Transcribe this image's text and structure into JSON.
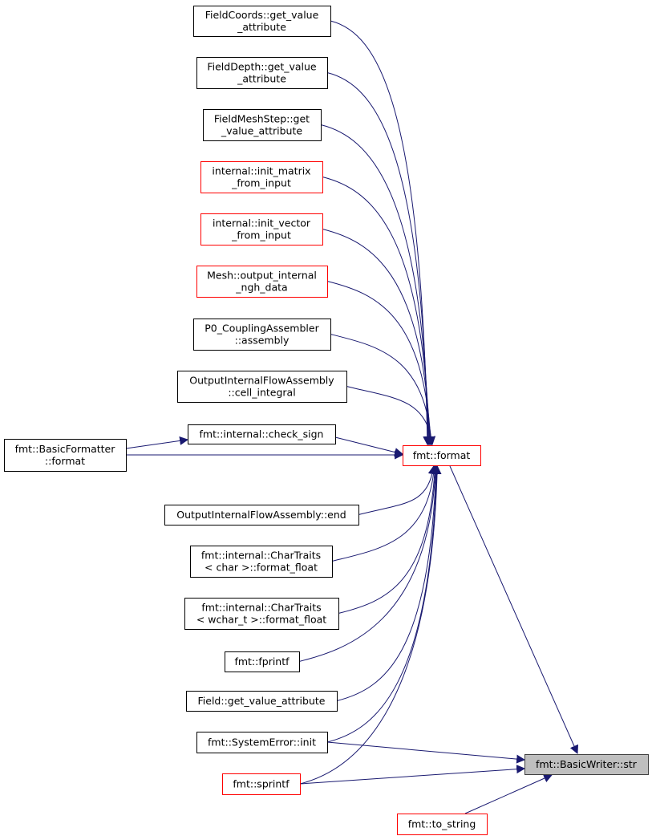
{
  "colors": {
    "edge": "#191970",
    "border_default": "#000000",
    "border_truncated": "#ff0000",
    "focus_fill": "#bfbfbf",
    "focus_border": "#404040"
  },
  "nodes": [
    {
      "id": "n1",
      "lines": [
        "FieldCoords::get_value",
        "_attribute"
      ],
      "style": "normal"
    },
    {
      "id": "n2",
      "lines": [
        "FieldDepth::get_value",
        "_attribute"
      ],
      "style": "normal"
    },
    {
      "id": "n3",
      "lines": [
        "FieldMeshStep::get",
        "_value_attribute"
      ],
      "style": "normal"
    },
    {
      "id": "n4",
      "lines": [
        "internal::init_matrix",
        "_from_input"
      ],
      "style": "truncated"
    },
    {
      "id": "n5",
      "lines": [
        "internal::init_vector",
        "_from_input"
      ],
      "style": "truncated"
    },
    {
      "id": "n6",
      "lines": [
        "Mesh::output_internal",
        "_ngh_data"
      ],
      "style": "truncated"
    },
    {
      "id": "n7",
      "lines": [
        "P0_CouplingAssembler",
        "::assembly"
      ],
      "style": "normal"
    },
    {
      "id": "n8",
      "lines": [
        "OutputInternalFlowAssembly",
        "::cell_integral"
      ],
      "style": "normal"
    },
    {
      "id": "n9",
      "lines": [
        "fmt::internal::check_sign"
      ],
      "style": "normal"
    },
    {
      "id": "n10",
      "lines": [
        "fmt::BasicFormatter",
        "::format"
      ],
      "style": "normal"
    },
    {
      "id": "n11",
      "lines": [
        "fmt::format"
      ],
      "style": "truncated"
    },
    {
      "id": "n12",
      "lines": [
        "OutputInternalFlowAssembly::end"
      ],
      "style": "normal"
    },
    {
      "id": "n13",
      "lines": [
        "fmt::internal::CharTraits",
        "< char >::format_float"
      ],
      "style": "normal"
    },
    {
      "id": "n14",
      "lines": [
        "fmt::internal::CharTraits",
        "< wchar_t >::format_float"
      ],
      "style": "normal"
    },
    {
      "id": "n15",
      "lines": [
        "fmt::fprintf"
      ],
      "style": "normal"
    },
    {
      "id": "n16",
      "lines": [
        "Field::get_value_attribute"
      ],
      "style": "normal"
    },
    {
      "id": "n17",
      "lines": [
        "fmt::SystemError::init"
      ],
      "style": "normal"
    },
    {
      "id": "n18",
      "lines": [
        "fmt::sprintf"
      ],
      "style": "truncated"
    },
    {
      "id": "n19",
      "lines": [
        "fmt::BasicWriter::str"
      ],
      "style": "focus"
    },
    {
      "id": "n20",
      "lines": [
        "fmt::to_string"
      ],
      "style": "truncated"
    }
  ],
  "edges": [
    {
      "from": "n1",
      "to": "n11"
    },
    {
      "from": "n2",
      "to": "n11"
    },
    {
      "from": "n3",
      "to": "n11"
    },
    {
      "from": "n4",
      "to": "n11"
    },
    {
      "from": "n5",
      "to": "n11"
    },
    {
      "from": "n6",
      "to": "n11"
    },
    {
      "from": "n7",
      "to": "n11"
    },
    {
      "from": "n8",
      "to": "n11"
    },
    {
      "from": "n9",
      "to": "n11"
    },
    {
      "from": "n10",
      "to": "n9"
    },
    {
      "from": "n10",
      "to": "n11"
    },
    {
      "from": "n12",
      "to": "n11"
    },
    {
      "from": "n13",
      "to": "n11"
    },
    {
      "from": "n14",
      "to": "n11"
    },
    {
      "from": "n15",
      "to": "n11"
    },
    {
      "from": "n16",
      "to": "n11"
    },
    {
      "from": "n17",
      "to": "n11"
    },
    {
      "from": "n18",
      "to": "n11"
    },
    {
      "from": "n11",
      "to": "n19"
    },
    {
      "from": "n17",
      "to": "n19"
    },
    {
      "from": "n18",
      "to": "n19"
    },
    {
      "from": "n20",
      "to": "n19"
    }
  ]
}
